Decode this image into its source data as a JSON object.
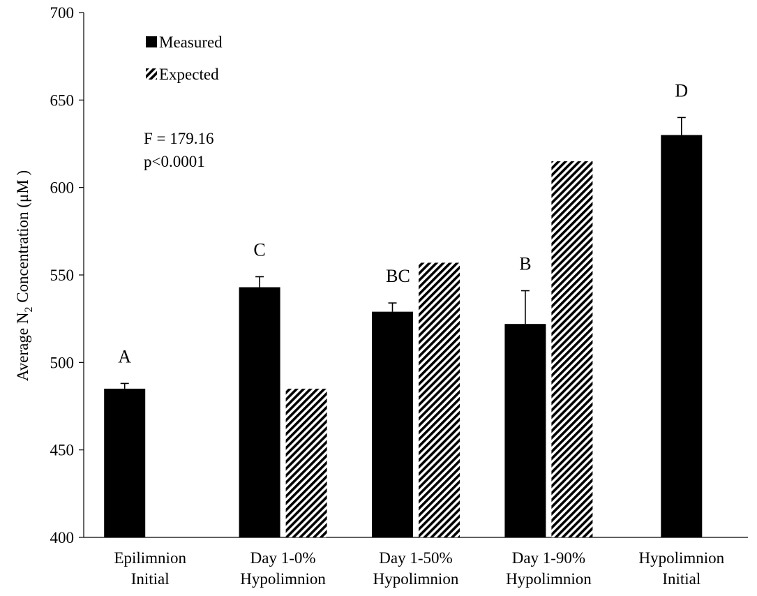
{
  "chart_data": {
    "type": "bar",
    "title": "",
    "xlabel": "",
    "ylabel": {
      "prefix": "Average N",
      "subscript": "2",
      "suffix": " Concentration (μM )"
    },
    "ylim": [
      400,
      700
    ],
    "yticks": [
      400,
      450,
      500,
      550,
      600,
      650,
      700
    ],
    "grid": false,
    "legend_position": "top-left",
    "categories": [
      [
        "Epilimnion",
        "Initial"
      ],
      [
        "Day 1-0%",
        "Hypolimnion"
      ],
      [
        "Day 1-50%",
        "Hypolimnion"
      ],
      [
        "Day 1-90%",
        "Hypolimnion"
      ],
      [
        "Hypolimnion",
        "Initial"
      ]
    ],
    "series": [
      {
        "name": "Measured",
        "pattern": "solid",
        "color": "#000000",
        "values": [
          485,
          543,
          529,
          522,
          630
        ],
        "error": [
          3,
          6,
          5,
          19,
          10
        ]
      },
      {
        "name": "Expected",
        "pattern": "diagonal-hatch",
        "color": "#000000",
        "values": [
          null,
          485,
          557,
          615,
          null
        ]
      }
    ],
    "significance_labels": [
      "A",
      "C",
      "BC",
      "B",
      "D"
    ],
    "annotations": [
      "F = 179.16",
      "p<0.0001"
    ]
  }
}
